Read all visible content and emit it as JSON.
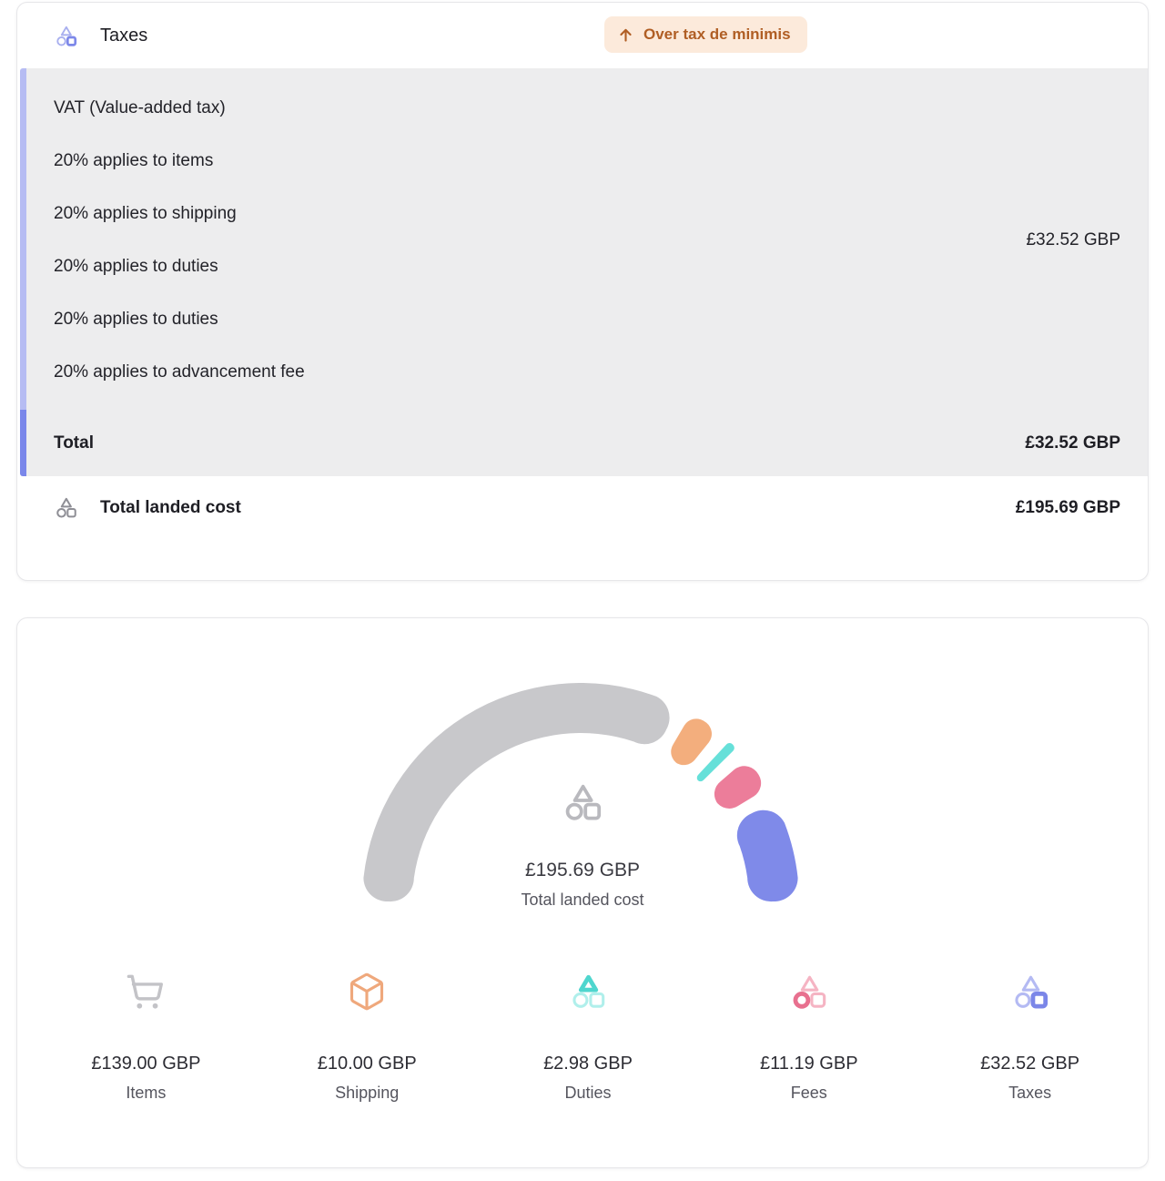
{
  "taxes_card": {
    "title": "Taxes",
    "badge_label": "Over tax de minimis",
    "vat": {
      "lines": [
        "VAT (Value-added tax)",
        "20% applies to items",
        "20% applies to shipping",
        "20% applies to duties",
        "20% applies to duties",
        "20% applies to advancement fee"
      ],
      "amount": "£32.52 GBP"
    },
    "total_label": "Total",
    "total_amount": "£32.52 GBP",
    "landed_label": "Total landed cost",
    "landed_amount": "£195.69 GBP"
  },
  "chart_data": {
    "type": "pie",
    "subtype": "half-donut-gauge",
    "title": "Total landed cost",
    "center_amount": "£195.69 GBP",
    "center_label": "Total landed cost",
    "total_value": 195.69,
    "currency": "GBP",
    "legend_position": "bottom",
    "start_angle": 180,
    "end_angle": 0,
    "pad_angle": 4,
    "segments": [
      {
        "label": "Items",
        "display": "£139.00 GBP",
        "value": 139.0,
        "color": "#c8c8cb",
        "icon": "cart",
        "icon_color": "#c3c3c7"
      },
      {
        "label": "Shipping",
        "display": "£10.00 GBP",
        "value": 10.0,
        "color": "#f3ae7d",
        "icon": "box",
        "icon_color": "#efa87c"
      },
      {
        "label": "Duties",
        "display": "£2.98 GBP",
        "value": 2.98,
        "color": "#66e0d9",
        "icon": "motif",
        "emphasis": "triangle",
        "icon_primary": "#4fd6ce",
        "icon_secondary": "#b0efeb"
      },
      {
        "label": "Fees",
        "display": "£11.19 GBP",
        "value": 11.19,
        "color": "#ec7d9a",
        "icon": "motif",
        "emphasis": "circle",
        "icon_primary": "#e8708f",
        "icon_secondary": "#f5b4c3"
      },
      {
        "label": "Taxes",
        "display": "£32.52 GBP",
        "value": 32.52,
        "color": "#7f8ae9",
        "icon": "motif",
        "emphasis": "square",
        "icon_primary": "#7b86e8",
        "icon_secondary": "#b4baf3"
      }
    ]
  },
  "colors": {
    "accent_bar_light": "#b6bcf3",
    "accent_bar_dark": "#7a87ea",
    "panel_bg": "#ededee",
    "badge_bg": "#fceadb",
    "badge_text": "#b05e24",
    "card_border": "#e6e6e9",
    "header_icon_primary": "#7d88e9",
    "header_icon_secondary": "#a9b0ef",
    "landed_icon_gray": "#8f8f96",
    "gauge_center_icon_gray": "#b9b9be"
  }
}
